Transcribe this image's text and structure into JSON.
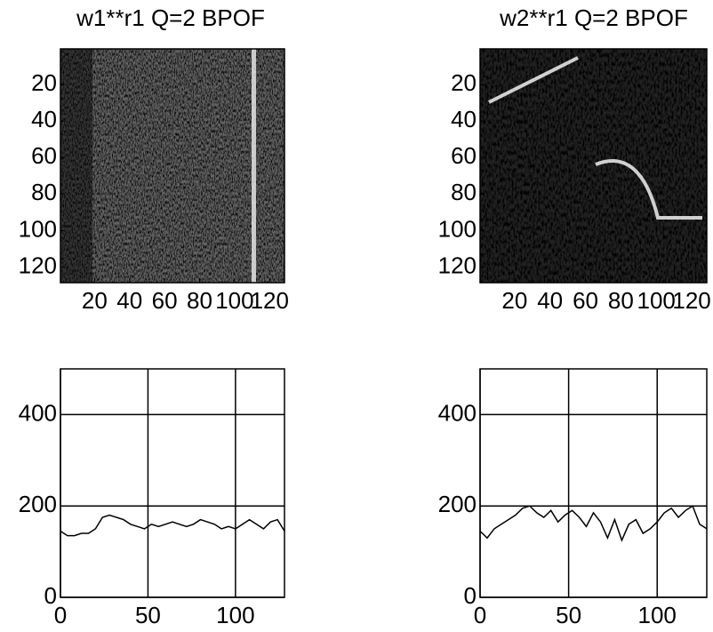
{
  "chart_data": [
    {
      "type": "image",
      "title": "w1**r1 Q=2 BPOF",
      "xlim": [
        0.5,
        128.5
      ],
      "ylim": [
        0.5,
        128.5
      ],
      "y_reversed": true,
      "xticks": [
        20,
        40,
        60,
        80,
        100,
        120
      ],
      "yticks": [
        20,
        40,
        60,
        80,
        100,
        120
      ]
    },
    {
      "type": "image",
      "title": "w2**r1 Q=2 BPOF",
      "xlim": [
        0.5,
        128.5
      ],
      "ylim": [
        0.5,
        128.5
      ],
      "y_reversed": true,
      "xticks": [
        20,
        40,
        60,
        80,
        100,
        120
      ],
      "yticks": [
        20,
        40,
        60,
        80,
        100,
        120
      ]
    },
    {
      "type": "line",
      "xlim": [
        0,
        128
      ],
      "ylim": [
        0,
        500
      ],
      "xticks": [
        0,
        50,
        100
      ],
      "yticks": [
        0,
        200,
        400
      ],
      "grid": true,
      "x": [
        0,
        4,
        8,
        12,
        16,
        20,
        24,
        28,
        32,
        36,
        40,
        44,
        48,
        52,
        56,
        60,
        64,
        68,
        72,
        76,
        80,
        84,
        88,
        92,
        96,
        100,
        104,
        108,
        112,
        116,
        120,
        124,
        128
      ],
      "series": [
        {
          "color": "#000000",
          "values": [
            145,
            135,
            135,
            140,
            140,
            150,
            175,
            180,
            175,
            170,
            160,
            155,
            150,
            160,
            155,
            160,
            165,
            160,
            155,
            160,
            170,
            165,
            160,
            150,
            155,
            150,
            160,
            170,
            160,
            150,
            165,
            170,
            145
          ]
        }
      ]
    },
    {
      "type": "line",
      "xlim": [
        0,
        128
      ],
      "ylim": [
        0,
        500
      ],
      "xticks": [
        0,
        50,
        100
      ],
      "yticks": [
        0,
        200,
        400
      ],
      "grid": true,
      "x": [
        0,
        4,
        8,
        12,
        16,
        20,
        24,
        28,
        32,
        36,
        40,
        44,
        48,
        52,
        56,
        60,
        64,
        68,
        72,
        76,
        80,
        84,
        88,
        92,
        96,
        100,
        104,
        108,
        112,
        116,
        120,
        124,
        128
      ],
      "series": [
        {
          "color": "#000000",
          "values": [
            145,
            130,
            150,
            160,
            170,
            180,
            195,
            200,
            185,
            175,
            190,
            165,
            180,
            190,
            175,
            155,
            185,
            165,
            130,
            170,
            125,
            160,
            170,
            140,
            150,
            165,
            185,
            195,
            175,
            190,
            200,
            160,
            150
          ]
        }
      ]
    }
  ]
}
